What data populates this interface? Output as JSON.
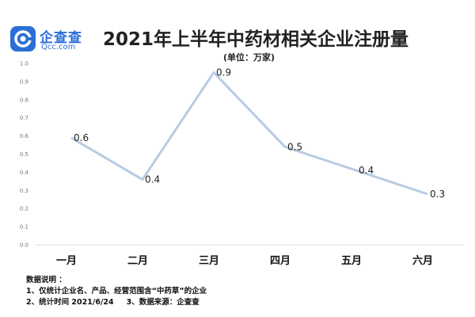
{
  "brand": {
    "name": "企查查",
    "domain": "Qcc.com",
    "color": "#2c6fd6"
  },
  "header": {
    "title": "2021年上半年中药材相关企业注册量",
    "unit": "(单位：万家)"
  },
  "notes": {
    "heading": "数据说明 ：",
    "line1": "1、仅统计企业名、产品、经营范围含“中药草”的企业",
    "line2a": "2、统计时间 2021/6/24",
    "line2b": "3、数据来源：企查查"
  },
  "chart_data": {
    "type": "line",
    "categories": [
      "一月",
      "二月",
      "三月",
      "四月",
      "五月",
      "六月"
    ],
    "series": [
      {
        "values": [
          0.59,
          0.36,
          0.95,
          0.54,
          0.41,
          0.28
        ],
        "labels": [
          "0.6",
          "0.4",
          "0.9",
          "0.5",
          "0.4",
          "0.3"
        ]
      }
    ],
    "ylim": [
      0,
      1.0
    ],
    "yticks": [
      "0.0",
      "0.1",
      "0.2",
      "0.3",
      "0.4",
      "0.5",
      "0.6",
      "0.7",
      "0.8",
      "0.9",
      "1.0"
    ],
    "grid": false,
    "line_color": "#b8cbe4"
  }
}
